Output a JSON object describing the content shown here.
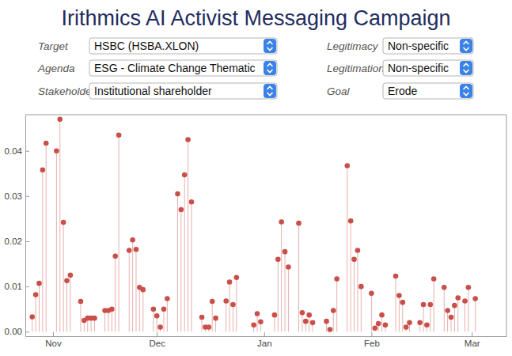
{
  "controls": [
    {
      "label": "Target",
      "value": "HSBC (HSBA.XLON)"
    },
    {
      "label": "Agenda",
      "value": "ESG - Climate Change Thematic"
    },
    {
      "label": "Stakeholder",
      "value": "Institutional shareholder"
    },
    {
      "label": "Legitimacy",
      "value": "Non-specific"
    },
    {
      "label": "Legitimation",
      "value": "Non-specific"
    },
    {
      "label": "Goal",
      "value": "Erode"
    }
  ],
  "chart_data": {
    "type": "stem",
    "title": "Irithmics AI Activist Messaging Campaign",
    "color": "#c9504a",
    "marker": "circle",
    "x": [
      25,
      26,
      27,
      28,
      29,
      32,
      33,
      34,
      35,
      36,
      39,
      40,
      41,
      42,
      43,
      46,
      47,
      48,
      49,
      50,
      53,
      54,
      55,
      56,
      57,
      60,
      61,
      62,
      63,
      64,
      67,
      68,
      69,
      70,
      71,
      74,
      75,
      76,
      77,
      78,
      81,
      82,
      83,
      84,
      89,
      90,
      91,
      95,
      96,
      97,
      98,
      99,
      102,
      103,
      104,
      105,
      106,
      110,
      111,
      112,
      113,
      116,
      117,
      118,
      119,
      120,
      123,
      124,
      125,
      126,
      127,
      130,
      131,
      132,
      133,
      134,
      137,
      138,
      139,
      140,
      141,
      144,
      145,
      146,
      147,
      148,
      150,
      151,
      153
    ],
    "values": [
      0.0033,
      0.0082,
      0.0107,
      0.0358,
      0.0417,
      0.04,
      0.047,
      0.0242,
      0.0113,
      0.0125,
      0.0067,
      0.0025,
      0.003,
      0.003,
      0.003,
      0.0047,
      0.0047,
      0.005,
      0.0167,
      0.0435,
      0.018,
      0.0203,
      0.0182,
      0.0098,
      0.0093,
      0.005,
      0.0035,
      0.001,
      0.005,
      0.0073,
      0.0305,
      0.027,
      0.0347,
      0.0425,
      0.0287,
      0.0032,
      0.001,
      0.001,
      0.0067,
      0.003,
      0.0068,
      0.011,
      0.006,
      0.012,
      0.0015,
      0.004,
      0.0022,
      0.0037,
      0.016,
      0.0243,
      0.0177,
      0.0143,
      0.024,
      0.0042,
      0.0023,
      0.0037,
      0.002,
      0.0023,
      0.0005,
      0.0047,
      0.0117,
      0.0367,
      0.0245,
      0.016,
      0.018,
      0.01,
      0.0085,
      0.0008,
      0.0018,
      0.0037,
      0.0015,
      0.0123,
      0.008,
      0.0065,
      0.001,
      0.002,
      0.002,
      0.006,
      0.0015,
      0.006,
      0.0117,
      0.0098,
      0.0047,
      0.0032,
      0.0058,
      0.0075,
      0.0068,
      0.0098,
      0.0073
    ],
    "xlim": [
      23,
      162
    ],
    "xticks": [
      {
        "value": 31,
        "label": "Nov"
      },
      {
        "value": 61,
        "label": "Dec"
      },
      {
        "value": 92,
        "label": "Jan"
      },
      {
        "value": 123,
        "label": "Feb"
      },
      {
        "value": 152,
        "label": "Mar"
      }
    ],
    "ylim": [
      -0.001,
      0.048
    ],
    "yticks": [
      {
        "value": 0,
        "label": "0.00"
      },
      {
        "value": 0.01,
        "label": "0.01"
      },
      {
        "value": 0.02,
        "label": "0.02"
      },
      {
        "value": 0.03,
        "label": "0.03"
      },
      {
        "value": 0.04,
        "label": "0.04"
      }
    ]
  }
}
